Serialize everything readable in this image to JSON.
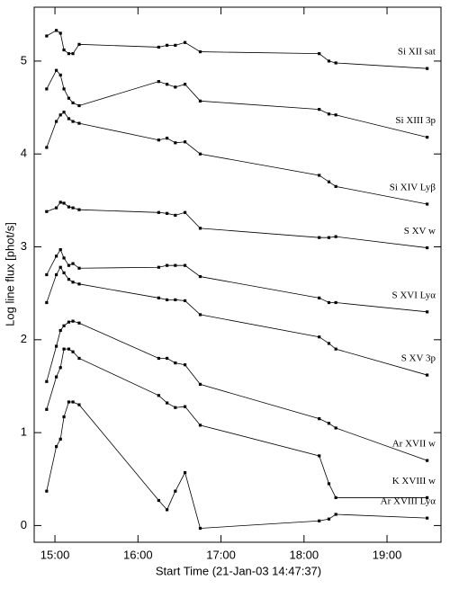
{
  "chart_data": {
    "type": "line",
    "xlabel": "Start Time (21-Jan-03 14:47:37)",
    "ylabel": "Log line flux [phot/s]",
    "x": [
      -6,
      1,
      4,
      6.5,
      10,
      13,
      17.5,
      75,
      81,
      87,
      94,
      105,
      191,
      198,
      203,
      269
    ],
    "xlim": [
      -15,
      279
    ],
    "xticks": [
      {
        "value": 0,
        "label": "15:00"
      },
      {
        "value": 60,
        "label": "16:00"
      },
      {
        "value": 120,
        "label": "17:00"
      },
      {
        "value": 180,
        "label": "18:00"
      },
      {
        "value": 240,
        "label": "19:00"
      }
    ],
    "ylim": [
      -0.18,
      5.58
    ],
    "yticks": [
      0,
      1,
      2,
      3,
      4,
      5
    ],
    "color": "#000000",
    "series": [
      {
        "name": "Si XII sat",
        "values": [
          5.27,
          5.33,
          5.3,
          5.12,
          5.08,
          5.08,
          5.18,
          5.15,
          5.17,
          5.17,
          5.2,
          5.1,
          5.08,
          5.0,
          4.98,
          4.92
        ]
      },
      {
        "name": "Si XIII 3p",
        "values": [
          4.7,
          4.9,
          4.85,
          4.7,
          4.6,
          4.55,
          4.52,
          4.78,
          4.75,
          4.72,
          4.75,
          4.57,
          4.48,
          4.43,
          4.42,
          4.18
        ]
      },
      {
        "name": "Si XIV Lyβ",
        "values": [
          4.07,
          4.35,
          4.42,
          4.45,
          4.38,
          4.35,
          4.33,
          4.15,
          4.17,
          4.12,
          4.13,
          4.0,
          3.77,
          3.7,
          3.65,
          3.46
        ]
      },
      {
        "name": "S XV w",
        "values": [
          3.38,
          3.42,
          3.48,
          3.47,
          3.43,
          3.42,
          3.4,
          3.37,
          3.36,
          3.34,
          3.37,
          3.2,
          3.1,
          3.1,
          3.11,
          2.99
        ]
      },
      {
        "name": "S XVI Lyα",
        "values": [
          2.7,
          2.9,
          2.97,
          2.88,
          2.8,
          2.82,
          2.77,
          2.78,
          2.8,
          2.8,
          2.8,
          2.68,
          2.45,
          2.4,
          2.4,
          2.3
        ]
      },
      {
        "name": "S XV 3p",
        "values": [
          2.4,
          2.7,
          2.78,
          2.72,
          2.65,
          2.62,
          2.6,
          2.45,
          2.43,
          2.43,
          2.42,
          2.27,
          2.03,
          1.96,
          1.9,
          1.62
        ]
      },
      {
        "name": "Ar XVII w",
        "values": [
          1.55,
          1.93,
          2.1,
          2.15,
          2.19,
          2.2,
          2.18,
          1.8,
          1.8,
          1.75,
          1.73,
          1.52,
          1.15,
          1.1,
          1.05,
          0.7
        ]
      },
      {
        "name": "K XVIII w",
        "values": [
          1.25,
          1.6,
          1.7,
          1.9,
          1.9,
          1.87,
          1.8,
          1.4,
          1.32,
          1.27,
          1.28,
          1.08,
          0.75,
          0.45,
          0.3,
          0.3
        ]
      },
      {
        "name": "Ar XVIII Lyα",
        "values": [
          0.37,
          0.85,
          0.93,
          1.17,
          1.33,
          1.33,
          1.3,
          0.27,
          0.17,
          0.37,
          0.57,
          -0.03,
          0.05,
          0.07,
          0.12,
          0.08
        ]
      }
    ]
  }
}
